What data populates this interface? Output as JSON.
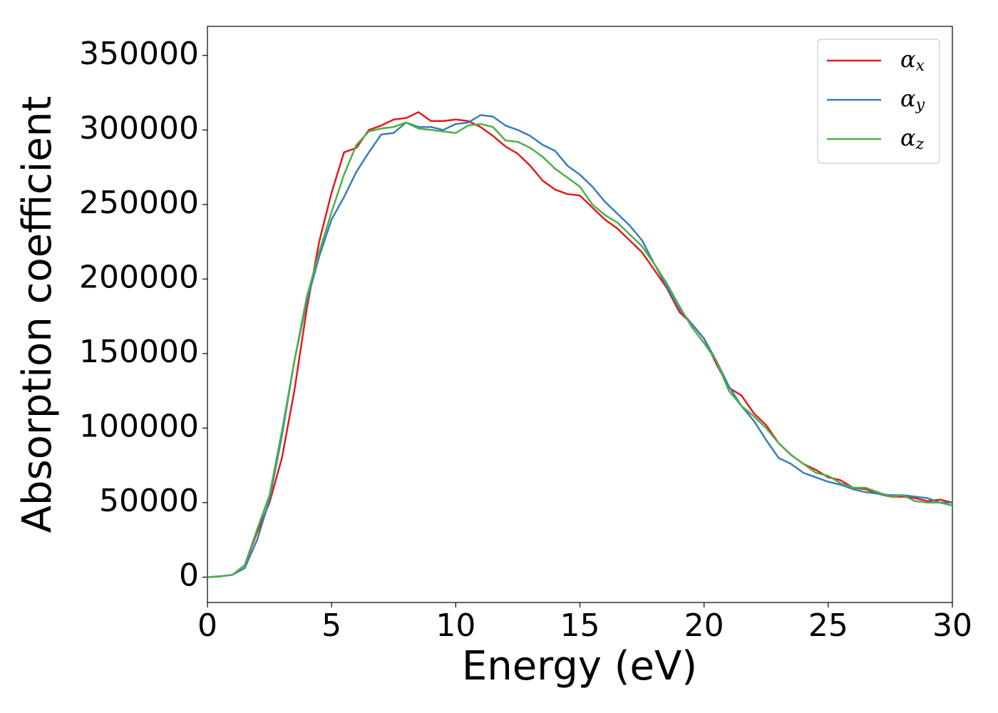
{
  "chart_data": {
    "type": "line",
    "x_label": "Energy (eV)",
    "y_label": "Absorption coefficient",
    "x": [
      0,
      0.5,
      1,
      1.5,
      2,
      2.5,
      3,
      3.5,
      4,
      4.5,
      5,
      5.5,
      6,
      6.5,
      7,
      7.5,
      8,
      8.5,
      9,
      9.5,
      10,
      10.5,
      11,
      11.5,
      12,
      12.5,
      13,
      13.5,
      14,
      14.5,
      15,
      15.5,
      16,
      16.5,
      17,
      17.5,
      18,
      18.5,
      19,
      19.5,
      20,
      20.5,
      21,
      21.5,
      22,
      22.5,
      23,
      23.5,
      24,
      24.5,
      25,
      25.5,
      26,
      26.5,
      27,
      27.5,
      28,
      28.5,
      29,
      29.5,
      30
    ],
    "series": [
      {
        "name": "αx",
        "color": "#e41a1c",
        "values": [
          0,
          500,
          1500,
          8000,
          30000,
          50000,
          80000,
          125000,
          180000,
          225000,
          258000,
          285000,
          288000,
          300000,
          303000,
          307000,
          308000,
          312000,
          306000,
          306000,
          307000,
          306000,
          302000,
          296000,
          289000,
          284000,
          276000,
          266000,
          260000,
          257000,
          256000,
          248000,
          240000,
          234000,
          226000,
          218000,
          206000,
          194000,
          178000,
          170000,
          160000,
          143000,
          127000,
          122000,
          110000,
          102000,
          90000,
          82000,
          76000,
          72000,
          67000,
          65000,
          60000,
          59000,
          56000,
          54000,
          54000,
          53000,
          51000,
          52000,
          50000
        ]
      },
      {
        "name": "αy",
        "color": "#377eb8",
        "values": [
          0,
          500,
          1500,
          6000,
          25000,
          52000,
          95000,
          145000,
          185000,
          215000,
          240000,
          255000,
          272000,
          285000,
          297000,
          298000,
          305000,
          302000,
          302000,
          300000,
          304000,
          305000,
          310000,
          309000,
          303000,
          300000,
          296000,
          290000,
          286000,
          276000,
          270000,
          262000,
          252000,
          244000,
          236000,
          226000,
          210000,
          195000,
          180000,
          170000,
          160000,
          145000,
          128000,
          115000,
          105000,
          92000,
          80000,
          76000,
          70000,
          67000,
          64000,
          62000,
          59000,
          57000,
          56000,
          55000,
          55000,
          54000,
          53000,
          50000,
          50000
        ]
      },
      {
        "name": "αz",
        "color": "#4daf4a",
        "values": [
          0,
          500,
          1500,
          8000,
          32000,
          55000,
          98000,
          145000,
          188000,
          218000,
          245000,
          270000,
          290000,
          299000,
          301000,
          302000,
          305000,
          301000,
          300000,
          299000,
          298000,
          303000,
          304000,
          302000,
          293000,
          292000,
          288000,
          282000,
          274000,
          268000,
          262000,
          250000,
          243000,
          238000,
          230000,
          222000,
          210000,
          197000,
          182000,
          168000,
          157000,
          145000,
          125000,
          115000,
          108000,
          100000,
          90000,
          82000,
          76000,
          70000,
          68000,
          63000,
          60000,
          60000,
          57000,
          54000,
          55000,
          51000,
          50000,
          50000,
          48000
        ]
      }
    ],
    "xlim": [
      0,
      30
    ],
    "xticks": [
      0,
      5,
      10,
      15,
      20,
      25,
      30
    ],
    "ylim": [
      -17000,
      369500
    ],
    "yticks": [
      0,
      50000,
      100000,
      150000,
      200000,
      250000,
      300000,
      350000
    ],
    "legend": "upper right",
    "grid": false
  }
}
